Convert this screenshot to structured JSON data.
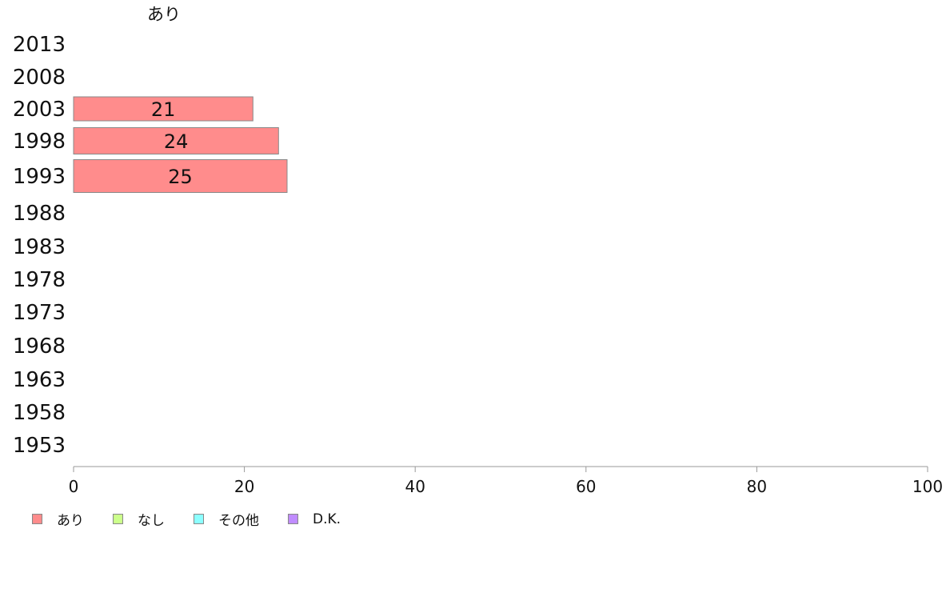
{
  "chart_data": {
    "type": "bar",
    "orientation": "horizontal",
    "column_header": "あり",
    "categories": [
      "2013",
      "2008",
      "2003",
      "1998",
      "1993",
      "1988",
      "1983",
      "1978",
      "1973",
      "1968",
      "1963",
      "1958",
      "1953"
    ],
    "series": [
      {
        "name": "あり",
        "color": "#ff8c8c",
        "values": [
          null,
          null,
          21,
          24,
          25,
          null,
          null,
          null,
          null,
          null,
          null,
          null,
          null
        ]
      }
    ],
    "xlim": [
      0,
      100
    ],
    "xticks": [
      "0",
      "20",
      "40",
      "60",
      "80",
      "100"
    ],
    "grid": false,
    "legend_position": "bottom-left"
  },
  "legend": [
    {
      "label": "あり",
      "color": "#ff8c8c"
    },
    {
      "label": "なし",
      "color": "#ccff8c"
    },
    {
      "label": "その他",
      "color": "#8cffff"
    },
    {
      "label": "D.K.",
      "color": "#c08cff"
    }
  ]
}
